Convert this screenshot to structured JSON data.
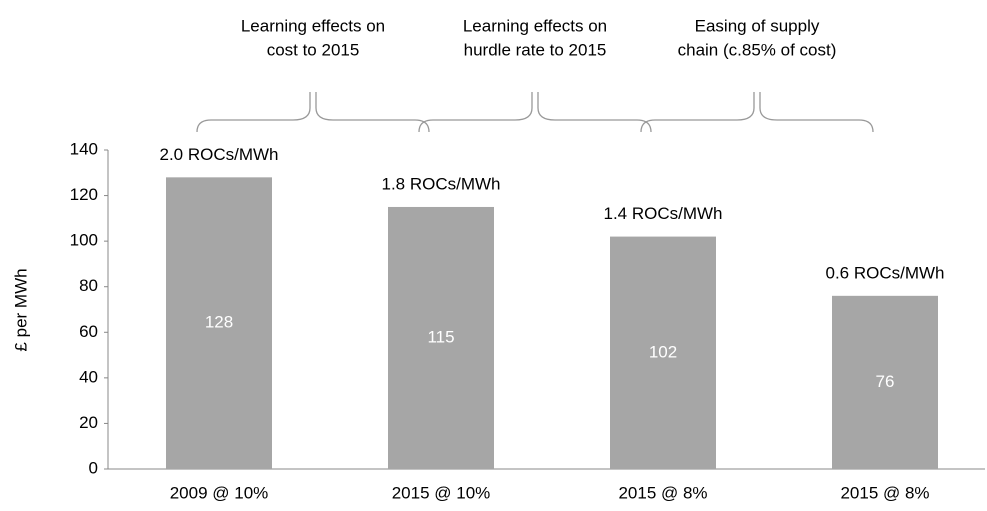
{
  "chart_data": {
    "type": "bar",
    "y_label": "£ per MWh",
    "categories": [
      "2009 @ 10%",
      "2015 @ 10%",
      "2015 @ 8%",
      "2015 @ 8%"
    ],
    "values": [
      128,
      115,
      102,
      76
    ],
    "color": "#a6a6a6",
    "bar_labels": [
      "2.0 ROCs/MWh",
      "1.8 ROCs/MWh",
      "1.4 ROCs/MWh",
      "0.6 ROCs/MWh"
    ],
    "annotations": [
      [
        "Learning effects on",
        "cost to 2015"
      ],
      [
        "Learning effects on",
        "hurdle rate to 2015"
      ],
      [
        "Easing of supply",
        "chain (c.85% of cost)"
      ]
    ],
    "ylim": [
      0,
      140
    ],
    "yticks": [
      0,
      20,
      40,
      60,
      80,
      100,
      120,
      140
    ],
    "grid": false
  }
}
